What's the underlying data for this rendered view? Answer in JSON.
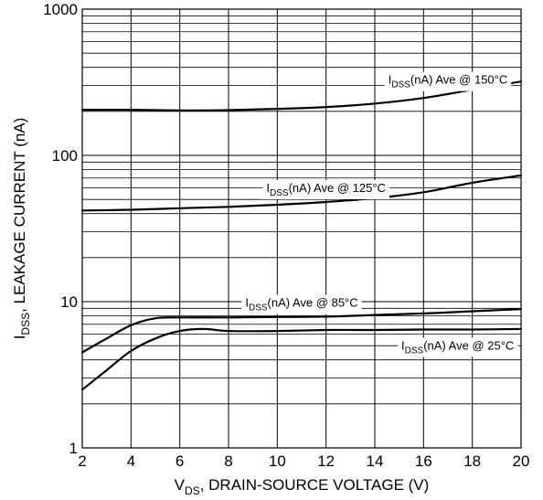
{
  "chart_data": {
    "type": "line",
    "x_axis": {
      "label_main": "V",
      "label_sub": "DS",
      "label_rest": ", DRAIN-SOURCE VOLTAGE (V)",
      "range": [
        2,
        20
      ],
      "ticks": [
        2,
        4,
        6,
        8,
        10,
        12,
        14,
        16,
        18,
        20
      ],
      "tick_labels": [
        "2",
        "4",
        "6",
        "8",
        "10",
        "12",
        "14",
        "16",
        "18",
        "20"
      ]
    },
    "y_axis": {
      "label_main": "I",
      "label_sub": "DSS",
      "label_rest": ", LEAKAGE CURRENT (nA)",
      "scale": "log",
      "range": [
        1,
        1000
      ],
      "ticks": [
        1,
        10,
        100,
        1000
      ],
      "tick_labels": [
        "1",
        "10",
        "100",
        "1000"
      ]
    },
    "grid": true,
    "series": [
      {
        "name": "IDSS(nA) Ave @ 150°C",
        "label_main": "I",
        "label_sub": "DSS",
        "label_rest": "(nA) Ave @ 150°C",
        "x": [
          2,
          4,
          6,
          8,
          10,
          12,
          14,
          16,
          18,
          20
        ],
        "y": [
          205,
          205,
          203,
          204,
          208,
          214,
          226,
          247,
          281,
          320
        ]
      },
      {
        "name": "IDSS(nA) Ave @ 125°C",
        "label_main": "I",
        "label_sub": "DSS",
        "label_rest": "(nA) Ave @ 125°C",
        "x": [
          2,
          4,
          6,
          8,
          10,
          12,
          14,
          16,
          18,
          20
        ],
        "y": [
          42,
          42.5,
          43.5,
          44.5,
          46,
          48,
          51,
          56,
          65,
          73
        ]
      },
      {
        "name": "IDSS(nA) Ave @ 85°C",
        "label_main": "I",
        "label_sub": "DSS",
        "label_rest": "(nA) Ave @ 85°C",
        "x": [
          2,
          3,
          4,
          5,
          6,
          8,
          10,
          12,
          14,
          16,
          18,
          20
        ],
        "y": [
          4.5,
          5.6,
          6.9,
          7.7,
          7.8,
          7.8,
          7.85,
          7.9,
          8.1,
          8.3,
          8.6,
          8.9
        ]
      },
      {
        "name": "IDSS(nA) Ave @ 25°C",
        "label_main": "I",
        "label_sub": "DSS",
        "label_rest": "(nA) Ave @ 25°C",
        "x": [
          2,
          3,
          4,
          5,
          6,
          7,
          8,
          10,
          12,
          14,
          16,
          18,
          20
        ],
        "y": [
          2.5,
          3.4,
          4.6,
          5.6,
          6.3,
          6.5,
          6.3,
          6.3,
          6.4,
          6.4,
          6.45,
          6.45,
          6.5
        ]
      }
    ]
  }
}
